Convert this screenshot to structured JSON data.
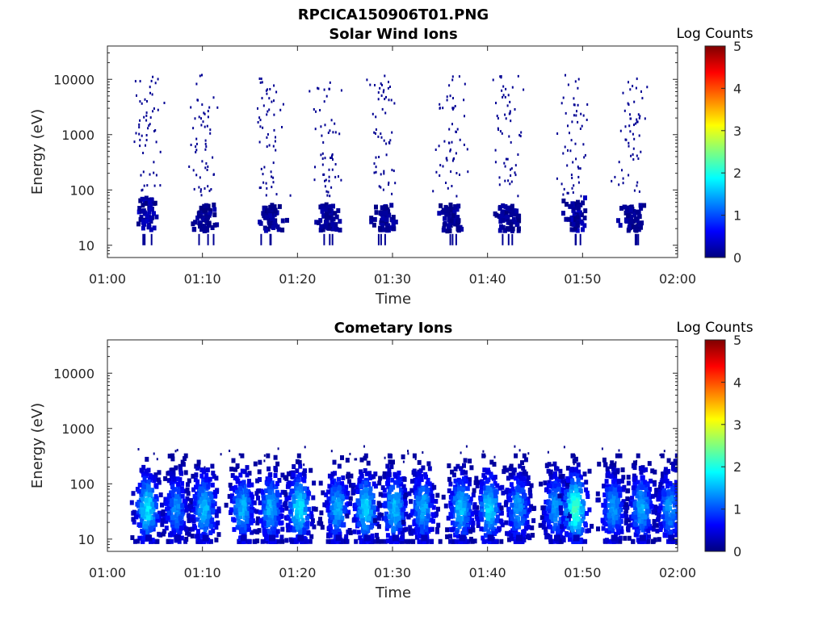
{
  "figure_title": "RPCICA150906T01.PNG",
  "colors": {
    "cmap": [
      "#00007f",
      "#0000ff",
      "#007fff",
      "#00ffff",
      "#7fff7f",
      "#ffff00",
      "#ff7f00",
      "#ff0000",
      "#7f0000"
    ],
    "axis": "#262626"
  },
  "chart_data": [
    {
      "type": "heatmap",
      "title": "Solar Wind Ions",
      "xlabel": "Time",
      "ylabel": "Energy (eV)",
      "xscale": "time",
      "yscale": "log",
      "xlim": [
        "01:00",
        "02:00"
      ],
      "ylim": [
        6,
        40000
      ],
      "xticks": [
        "01:00",
        "01:10",
        "01:20",
        "01:30",
        "01:40",
        "01:50",
        "02:00"
      ],
      "yticks": [
        "10",
        "100",
        "1000",
        "10000"
      ],
      "colorbar": {
        "title": "Log Counts",
        "range": [
          0,
          5
        ],
        "ticks": [
          "0",
          "1",
          "2",
          "3",
          "4",
          "5"
        ]
      },
      "sweeps": [
        {
          "center": "01:04",
          "low_band_eV": [
            20,
            80
          ],
          "level": 0.3
        },
        {
          "center": "01:10",
          "low_band_eV": [
            20,
            60
          ],
          "level": 0.2
        },
        {
          "center": "01:17",
          "low_band_eV": [
            20,
            60
          ],
          "level": 0.2
        },
        {
          "center": "01:23",
          "low_band_eV": [
            20,
            60
          ],
          "level": 0.2
        },
        {
          "center": "01:29",
          "low_band_eV": [
            20,
            60
          ],
          "level": 0.2
        },
        {
          "center": "01:36",
          "low_band_eV": [
            20,
            60
          ],
          "level": 0.2
        },
        {
          "center": "01:42",
          "low_band_eV": [
            20,
            60
          ],
          "level": 0.2
        },
        {
          "center": "01:49",
          "low_band_eV": [
            20,
            80
          ],
          "level": 0.3
        },
        {
          "center": "01:55",
          "low_band_eV": [
            20,
            60
          ],
          "level": 0.2
        }
      ]
    },
    {
      "type": "heatmap",
      "title": "Cometary Ions",
      "xlabel": "Time",
      "ylabel": "Energy (eV)",
      "xscale": "time",
      "yscale": "log",
      "xlim": [
        "01:00",
        "02:00"
      ],
      "ylim": [
        6,
        40000
      ],
      "xticks": [
        "01:00",
        "01:10",
        "01:20",
        "01:30",
        "01:40",
        "01:50",
        "02:00"
      ],
      "yticks": [
        "10",
        "100",
        "1000",
        "10000"
      ],
      "colorbar": {
        "title": "Log Counts",
        "range": [
          0,
          5
        ],
        "ticks": [
          "0",
          "1",
          "2",
          "3",
          "4",
          "5"
        ]
      },
      "blobs": [
        {
          "center": "01:04",
          "peak_eV": 40,
          "max_level": 1.8
        },
        {
          "center": "01:07",
          "peak_eV": 40,
          "max_level": 1.3
        },
        {
          "center": "01:10",
          "peak_eV": 40,
          "max_level": 1.6
        },
        {
          "center": "01:14",
          "peak_eV": 40,
          "max_level": 1.5
        },
        {
          "center": "01:17",
          "peak_eV": 40,
          "max_level": 1.5
        },
        {
          "center": "01:20",
          "peak_eV": 40,
          "max_level": 1.8
        },
        {
          "center": "01:24",
          "peak_eV": 40,
          "max_level": 1.5
        },
        {
          "center": "01:27",
          "peak_eV": 40,
          "max_level": 1.7
        },
        {
          "center": "01:30",
          "peak_eV": 40,
          "max_level": 1.6
        },
        {
          "center": "01:33",
          "peak_eV": 40,
          "max_level": 1.5
        },
        {
          "center": "01:37",
          "peak_eV": 40,
          "max_level": 1.6
        },
        {
          "center": "01:40",
          "peak_eV": 40,
          "max_level": 1.7
        },
        {
          "center": "01:43",
          "peak_eV": 40,
          "max_level": 1.4
        },
        {
          "center": "01:47",
          "peak_eV": 40,
          "max_level": 1.4
        },
        {
          "center": "01:49",
          "peak_eV": 40,
          "max_level": 2.2
        },
        {
          "center": "01:53",
          "peak_eV": 40,
          "max_level": 1.4
        },
        {
          "center": "01:56",
          "peak_eV": 40,
          "max_level": 1.5
        },
        {
          "center": "01:59",
          "peak_eV": 40,
          "max_level": 1.4
        }
      ]
    }
  ]
}
